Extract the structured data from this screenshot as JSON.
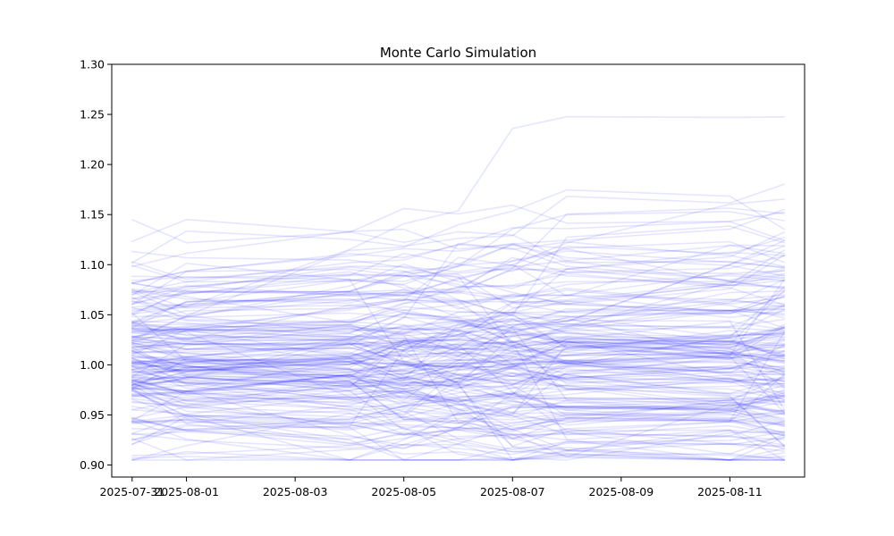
{
  "chart_data": {
    "type": "line",
    "title": "Monte Carlo Simulation",
    "xlabel": "",
    "ylabel": "",
    "x_dates": [
      "2025-07-31",
      "2025-08-01",
      "2025-08-04",
      "2025-08-05",
      "2025-08-06",
      "2025-08-07",
      "2025-08-08",
      "2025-08-11",
      "2025-08-12"
    ],
    "xlim": [
      "2025-07-30 15:00",
      "2025-08-12 09:00"
    ],
    "ylim": [
      0.888,
      1.3
    ],
    "x_ticks": [
      "2025-07-31",
      "2025-08-01",
      "2025-08-03",
      "2025-08-05",
      "2025-08-07",
      "2025-08-09",
      "2025-08-11"
    ],
    "y_ticks": [
      0.9,
      0.95,
      1.0,
      1.05,
      1.1,
      1.15,
      1.2,
      1.25,
      1.3
    ],
    "y_tick_labels": [
      "0.90",
      "0.95",
      "1.00",
      "1.05",
      "1.10",
      "1.15",
      "1.20",
      "1.25",
      "1.30"
    ],
    "grid": false,
    "legend": "none",
    "series_color": "#0000ff",
    "series_alpha": 0.1,
    "series_count": 200,
    "start_value_range": [
      0.905,
      1.175
    ],
    "end_value_range": [
      0.96,
      1.282
    ]
  }
}
